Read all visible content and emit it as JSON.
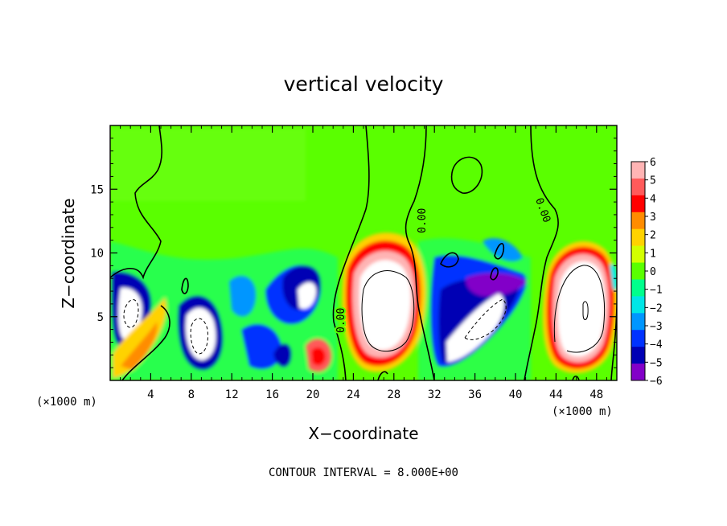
{
  "chart_data": {
    "type": "heatmap",
    "title": "vertical velocity",
    "xlabel": "X−coordinate",
    "ylabel": "Z−coordinate",
    "x_unit_left": "(×1000 m)",
    "x_unit_right": "(×1000 m)",
    "xlim": [
      0,
      50
    ],
    "ylim": [
      0,
      20
    ],
    "x_ticks": [
      4,
      8,
      12,
      16,
      20,
      24,
      28,
      32,
      36,
      40,
      44,
      48
    ],
    "x_tick_labels": [
      "4",
      "8",
      "12",
      "16",
      "20",
      "24",
      "28",
      "32",
      "36",
      "40",
      "44",
      "48"
    ],
    "y_ticks": [
      5,
      10,
      15
    ],
    "y_tick_labels": [
      "5",
      "10",
      "15"
    ],
    "contour_labels": [
      "0.00",
      "0.00",
      "0.00"
    ],
    "contour_interval_text": "CONTOUR INTERVAL = 8.000E+00",
    "colorbar": {
      "levels": [
        6,
        5,
        4,
        3,
        2,
        1,
        0,
        -1,
        -2,
        -3,
        -4,
        -5,
        -6
      ],
      "labels": [
        "6",
        "5",
        "4",
        "3",
        "2",
        "1",
        "0",
        "−1",
        "−2",
        "−3",
        "−4",
        "−5",
        "−6"
      ],
      "colors": [
        "#ffb4b4",
        "#ff5a5a",
        "#ff0000",
        "#ff8c00",
        "#ffd200",
        "#d2ff00",
        "#5aff00",
        "#00ff8c",
        "#00e6e6",
        "#0096ff",
        "#0032ff",
        "#0000b4",
        "#8200c8"
      ]
    },
    "background_color": "#5aff00",
    "features": [
      {
        "x": 3.0,
        "z": 4.5,
        "w": -9
      },
      {
        "x": 9.5,
        "z": 3.5,
        "w": -9
      },
      {
        "x": 18.5,
        "z": 6.0,
        "w": -6
      },
      {
        "x": 14.5,
        "z": 4.0,
        "w": -3
      },
      {
        "x": 20.0,
        "z": 2.0,
        "w": 5
      },
      {
        "x": 27.5,
        "z": 6.0,
        "w": 9
      },
      {
        "x": 36.0,
        "z": 4.5,
        "w": -9
      },
      {
        "x": 46.5,
        "z": 5.5,
        "w": 9
      },
      {
        "x": 4.0,
        "z": 2.5,
        "w": 3
      }
    ]
  }
}
